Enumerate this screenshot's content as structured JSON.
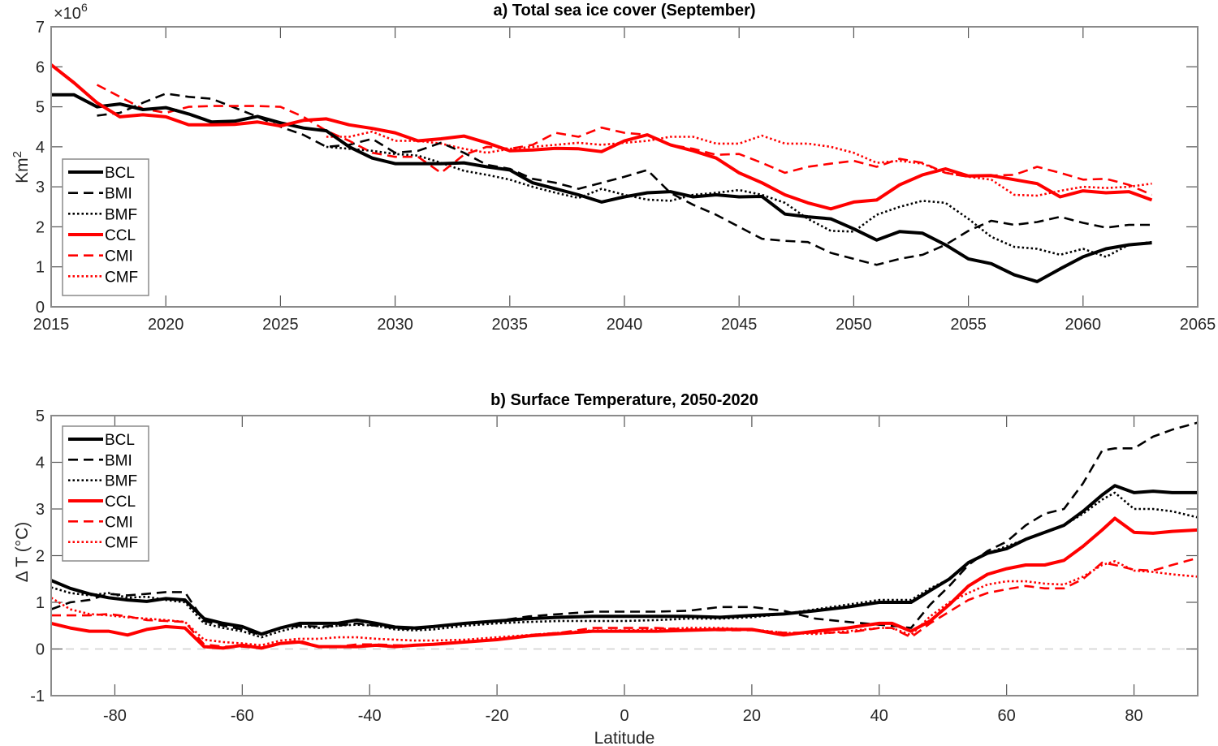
{
  "chart_data": [
    {
      "type": "line",
      "title": "a) Total sea ice cover (September)",
      "xlabel": "",
      "ylabel": "Km2",
      "ylabel_base": "Km",
      "ylabel_sup": "2",
      "y_exponent_label": "×10",
      "y_exponent_sup": "6",
      "xlim": [
        2015,
        2065
      ],
      "ylim": [
        0,
        7
      ],
      "xticks": [
        2015,
        2020,
        2025,
        2030,
        2035,
        2040,
        2045,
        2050,
        2055,
        2060,
        2065
      ],
      "yticks": [
        0,
        1,
        2,
        3,
        4,
        5,
        6,
        7
      ],
      "grid": false,
      "legend_position": "lower-left",
      "x": [
        2015,
        2016,
        2017,
        2018,
        2019,
        2020,
        2021,
        2022,
        2023,
        2024,
        2025,
        2026,
        2027,
        2028,
        2029,
        2030,
        2031,
        2032,
        2033,
        2034,
        2035,
        2036,
        2037,
        2038,
        2039,
        2040,
        2041,
        2042,
        2043,
        2044,
        2045,
        2046,
        2047,
        2048,
        2049,
        2050,
        2051,
        2052,
        2053,
        2054,
        2055,
        2056,
        2057,
        2058,
        2059,
        2060,
        2061,
        2062,
        2063
      ],
      "series": [
        {
          "name": "BCL",
          "color": "#000000",
          "style": "solid",
          "values": [
            5.3,
            5.3,
            5.0,
            5.07,
            4.93,
            4.98,
            4.82,
            4.62,
            4.64,
            4.76,
            4.6,
            4.47,
            4.4,
            4.0,
            3.72,
            3.58,
            3.58,
            3.58,
            3.6,
            3.5,
            3.42,
            3.1,
            2.95,
            2.8,
            2.62,
            2.75,
            2.85,
            2.88,
            2.75,
            2.8,
            2.75,
            2.76,
            2.32,
            2.25,
            2.2,
            1.95,
            1.67,
            1.88,
            1.84,
            1.55,
            1.2,
            1.08,
            0.8,
            0.63,
            0.95,
            1.25,
            1.45,
            1.55,
            1.6
          ]
        },
        {
          "name": "BMI",
          "color": "#000000",
          "style": "dashed",
          "values": [
            null,
            null,
            4.78,
            4.85,
            5.1,
            5.33,
            5.25,
            5.2,
            4.98,
            4.75,
            4.5,
            4.3,
            4.0,
            4.05,
            4.2,
            3.85,
            3.9,
            4.1,
            3.85,
            3.55,
            3.45,
            3.2,
            3.1,
            2.95,
            3.1,
            3.25,
            3.42,
            2.85,
            2.55,
            2.3,
            2.0,
            1.7,
            1.65,
            1.62,
            1.35,
            1.2,
            1.05,
            1.2,
            1.3,
            1.55,
            1.9,
            2.15,
            2.05,
            2.12,
            2.25,
            2.1,
            1.98,
            2.05,
            2.05
          ]
        },
        {
          "name": "BMF",
          "color": "#000000",
          "style": "dotted",
          "values": [
            null,
            null,
            null,
            null,
            null,
            null,
            null,
            null,
            null,
            null,
            null,
            null,
            4.0,
            3.95,
            3.9,
            3.82,
            3.78,
            3.6,
            3.4,
            3.3,
            3.18,
            3.0,
            2.85,
            2.72,
            2.95,
            2.8,
            2.68,
            2.65,
            2.8,
            2.85,
            2.92,
            2.8,
            2.6,
            2.2,
            1.9,
            1.88,
            2.3,
            2.5,
            2.65,
            2.6,
            2.2,
            1.75,
            1.5,
            1.45,
            1.3,
            1.45,
            1.25,
            1.55,
            1.62
          ]
        },
        {
          "name": "CCL",
          "color": "#ff0000",
          "style": "solid",
          "values": [
            6.05,
            5.6,
            5.1,
            4.75,
            4.8,
            4.75,
            4.55,
            4.55,
            4.56,
            4.62,
            4.52,
            4.66,
            4.7,
            4.55,
            4.46,
            4.35,
            4.15,
            4.2,
            4.27,
            4.1,
            3.9,
            3.92,
            3.96,
            3.95,
            3.88,
            4.15,
            4.3,
            4.05,
            3.9,
            3.72,
            3.35,
            3.1,
            2.8,
            2.6,
            2.45,
            2.62,
            2.67,
            3.05,
            3.3,
            3.45,
            3.27,
            3.28,
            3.18,
            3.08,
            2.75,
            2.9,
            2.85,
            2.88,
            2.67
          ]
        },
        {
          "name": "CMI",
          "color": "#ff0000",
          "style": "dashed",
          "values": [
            null,
            null,
            5.55,
            5.25,
            4.95,
            4.85,
            5.0,
            5.02,
            5.02,
            5.02,
            5.0,
            4.75,
            4.4,
            4.15,
            3.85,
            3.75,
            3.75,
            3.35,
            3.8,
            4.0,
            3.95,
            4.05,
            4.35,
            4.25,
            4.48,
            4.35,
            4.3,
            4.05,
            3.95,
            3.8,
            3.82,
            3.6,
            3.35,
            3.5,
            3.58,
            3.65,
            3.5,
            3.7,
            3.6,
            3.35,
            3.25,
            3.28,
            3.3,
            3.5,
            3.35,
            3.18,
            3.2,
            3.05,
            2.8
          ]
        },
        {
          "name": "CMF",
          "color": "#ff0000",
          "style": "dotted",
          "values": [
            null,
            null,
            null,
            null,
            null,
            null,
            null,
            null,
            null,
            null,
            null,
            null,
            4.25,
            4.25,
            4.38,
            4.15,
            4.15,
            4.08,
            3.95,
            3.85,
            3.95,
            4.0,
            4.05,
            4.1,
            4.05,
            4.1,
            4.15,
            4.25,
            4.25,
            4.08,
            4.08,
            4.28,
            4.08,
            4.08,
            4.0,
            3.85,
            3.6,
            3.65,
            3.58,
            3.35,
            3.25,
            3.18,
            2.8,
            2.78,
            2.9,
            3.0,
            2.97,
            3.0,
            3.08
          ]
        }
      ]
    },
    {
      "type": "line",
      "title": "b) Surface Temperature, 2050-2020",
      "xlabel": "Latitude",
      "ylabel": "Δ T (°C)",
      "xlim": [
        -90,
        90
      ],
      "ylim": [
        -1,
        5
      ],
      "xticks": [
        -80,
        -60,
        -40,
        -20,
        0,
        20,
        40,
        60,
        80
      ],
      "yticks": [
        -1,
        0,
        1,
        2,
        3,
        4,
        5
      ],
      "grid": false,
      "reference_line": {
        "y": 0,
        "style": "dashed",
        "color": "#d0d0d0"
      },
      "legend_position": "upper-left",
      "x": [
        -90,
        -87,
        -84,
        -81,
        -78,
        -75,
        -72,
        -69,
        -66,
        -63,
        -60,
        -57,
        -54,
        -51,
        -48,
        -45,
        -42,
        -39,
        -36,
        -33,
        -30,
        -25,
        -20,
        -15,
        -10,
        -5,
        0,
        5,
        10,
        15,
        20,
        25,
        30,
        35,
        40,
        42,
        45,
        48,
        51,
        54,
        57,
        60,
        63,
        66,
        69,
        72,
        75,
        77,
        80,
        83,
        86,
        90
      ],
      "series": [
        {
          "name": "BCL",
          "color": "#000000",
          "style": "solid",
          "values": [
            1.47,
            1.3,
            1.18,
            1.1,
            1.05,
            1.02,
            1.08,
            1.05,
            0.65,
            0.55,
            0.48,
            0.32,
            0.45,
            0.55,
            0.55,
            0.55,
            0.62,
            0.55,
            0.47,
            0.45,
            0.48,
            0.55,
            0.6,
            0.65,
            0.68,
            0.7,
            0.7,
            0.7,
            0.7,
            0.68,
            0.72,
            0.75,
            0.82,
            0.9,
            1.0,
            1.0,
            1.0,
            1.25,
            1.5,
            1.85,
            2.05,
            2.15,
            2.35,
            2.5,
            2.65,
            2.95,
            3.3,
            3.5,
            3.35,
            3.38,
            3.35,
            3.35
          ]
        },
        {
          "name": "BMI",
          "color": "#000000",
          "style": "dashed",
          "values": [
            0.85,
            1.0,
            1.05,
            1.18,
            1.15,
            1.18,
            1.22,
            1.22,
            0.6,
            0.5,
            0.42,
            0.3,
            0.45,
            0.5,
            0.48,
            0.5,
            0.55,
            0.5,
            0.45,
            0.42,
            0.48,
            0.55,
            0.6,
            0.7,
            0.75,
            0.8,
            0.8,
            0.8,
            0.82,
            0.9,
            0.9,
            0.82,
            0.65,
            0.58,
            0.52,
            0.5,
            0.45,
            0.95,
            1.35,
            1.8,
            2.1,
            2.3,
            2.65,
            2.9,
            3.0,
            3.55,
            4.25,
            4.3,
            4.3,
            4.55,
            4.7,
            4.85
          ]
        },
        {
          "name": "BMF",
          "color": "#000000",
          "style": "dotted",
          "values": [
            1.32,
            1.2,
            1.15,
            1.2,
            1.1,
            1.12,
            1.05,
            1.0,
            0.55,
            0.45,
            0.38,
            0.25,
            0.38,
            0.48,
            0.45,
            0.5,
            0.52,
            0.5,
            0.42,
            0.4,
            0.42,
            0.5,
            0.55,
            0.58,
            0.6,
            0.6,
            0.6,
            0.62,
            0.65,
            0.65,
            0.68,
            0.75,
            0.85,
            0.95,
            1.05,
            1.05,
            1.05,
            1.3,
            1.5,
            1.85,
            2.05,
            2.2,
            2.35,
            2.5,
            2.65,
            2.9,
            3.2,
            3.35,
            3.0,
            3.0,
            2.95,
            2.82
          ]
        },
        {
          "name": "CCL",
          "color": "#ff0000",
          "style": "solid",
          "values": [
            0.55,
            0.45,
            0.38,
            0.38,
            0.3,
            0.42,
            0.48,
            0.45,
            0.05,
            0.02,
            0.08,
            0.02,
            0.12,
            0.15,
            0.05,
            0.05,
            0.05,
            0.08,
            0.05,
            0.08,
            0.1,
            0.15,
            0.2,
            0.28,
            0.33,
            0.38,
            0.38,
            0.38,
            0.4,
            0.42,
            0.42,
            0.3,
            0.38,
            0.45,
            0.55,
            0.55,
            0.38,
            0.6,
            0.95,
            1.35,
            1.6,
            1.72,
            1.8,
            1.8,
            1.9,
            2.2,
            2.55,
            2.8,
            2.5,
            2.48,
            2.52,
            2.55
          ]
        },
        {
          "name": "CMI",
          "color": "#ff0000",
          "style": "dashed",
          "values": [
            0.72,
            0.72,
            0.72,
            0.75,
            0.7,
            0.62,
            0.6,
            0.58,
            0.1,
            0.05,
            0.05,
            0.02,
            0.12,
            0.18,
            0.05,
            0.05,
            0.1,
            0.1,
            0.08,
            0.08,
            0.1,
            0.15,
            0.2,
            0.3,
            0.35,
            0.45,
            0.45,
            0.45,
            0.42,
            0.4,
            0.4,
            0.35,
            0.35,
            0.35,
            0.45,
            0.45,
            0.25,
            0.55,
            0.8,
            1.05,
            1.2,
            1.28,
            1.35,
            1.3,
            1.3,
            1.5,
            1.85,
            1.8,
            1.7,
            1.68,
            1.8,
            1.95
          ]
        },
        {
          "name": "CMF",
          "color": "#ff0000",
          "style": "dotted",
          "values": [
            1.1,
            0.85,
            0.75,
            0.72,
            0.68,
            0.65,
            0.62,
            0.58,
            0.2,
            0.15,
            0.12,
            0.08,
            0.18,
            0.22,
            0.22,
            0.25,
            0.25,
            0.22,
            0.2,
            0.18,
            0.18,
            0.2,
            0.25,
            0.3,
            0.35,
            0.4,
            0.4,
            0.42,
            0.45,
            0.45,
            0.42,
            0.35,
            0.32,
            0.38,
            0.45,
            0.45,
            0.3,
            0.7,
            1.0,
            1.2,
            1.38,
            1.45,
            1.45,
            1.4,
            1.38,
            1.55,
            1.8,
            1.88,
            1.68,
            1.65,
            1.6,
            1.55
          ]
        }
      ]
    }
  ],
  "legend": {
    "entries": [
      "BCL",
      "BMI",
      "BMF",
      "CCL",
      "CMI",
      "CMF"
    ]
  }
}
